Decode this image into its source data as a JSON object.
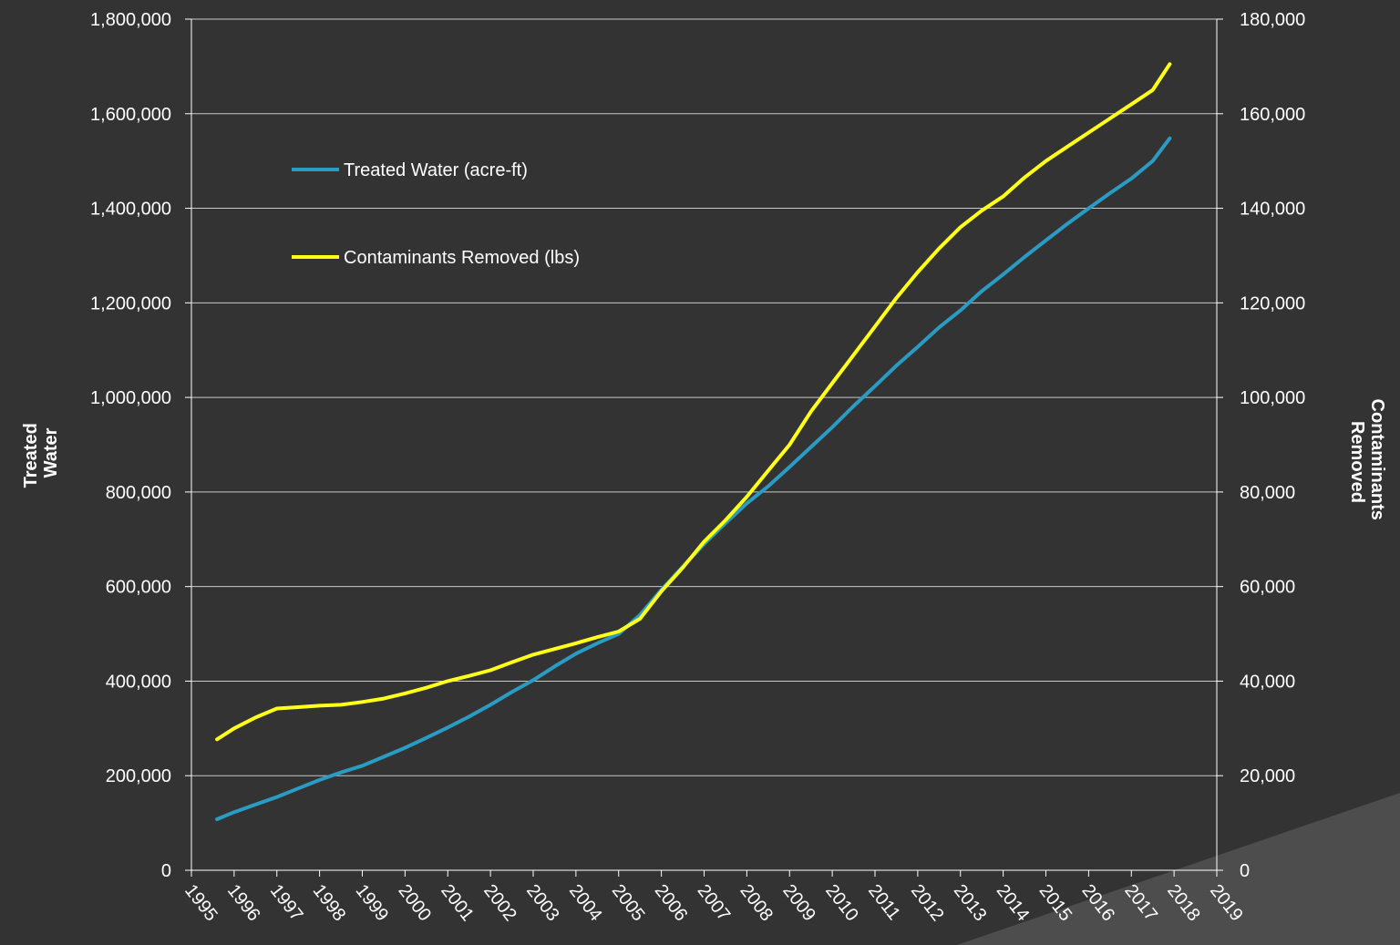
{
  "chart_data": {
    "type": "line",
    "title": "",
    "colors": {
      "background": "#333333",
      "corner": "#4d4d4d",
      "grid": "#c8c8c8",
      "axis": "#ffffff",
      "text": "#ffffff"
    },
    "x_ticks": [
      "1995",
      "1996",
      "1997",
      "1998",
      "1999",
      "2000",
      "2001",
      "2002",
      "2003",
      "2004",
      "2005",
      "2006",
      "2007",
      "2008",
      "2009",
      "2010",
      "2011",
      "2012",
      "2013",
      "2014",
      "2015",
      "2016",
      "2017",
      "2018",
      "2019"
    ],
    "xlim": [
      1995,
      2019
    ],
    "y_left": {
      "label_lines": [
        "Treated",
        "Water"
      ],
      "ylim": [
        0,
        1800000
      ],
      "ticks": [
        "0",
        "200,000",
        "400,000",
        "600,000",
        "800,000",
        "1,000,000",
        "1,200,000",
        "1,400,000",
        "1,600,000",
        "1,800,000"
      ]
    },
    "y_right": {
      "label_lines": [
        "Contaminants",
        "Removed"
      ],
      "ylim": [
        0,
        180000
      ],
      "ticks": [
        "0",
        "20,000",
        "40,000",
        "60,000",
        "80,000",
        "100,000",
        "120,000",
        "140,000",
        "160,000",
        "180,000"
      ]
    },
    "grid": true,
    "legend_position": "upper-left inside plot",
    "series": [
      {
        "name": "Treated Water (acre-ft)",
        "axis": "left",
        "color": "#2a9cc4",
        "x": [
          1995.6,
          1996,
          1996.5,
          1997,
          1997.5,
          1998,
          1998.5,
          1999,
          1999.5,
          2000,
          2000.5,
          2001,
          2001.5,
          2002,
          2002.5,
          2003,
          2003.5,
          2004,
          2004.5,
          2005,
          2005.5,
          2006,
          2006.5,
          2007,
          2007.5,
          2008,
          2008.5,
          2009,
          2009.5,
          2010,
          2010.5,
          2011,
          2011.5,
          2012,
          2012.5,
          2013,
          2013.5,
          2014,
          2014.5,
          2015,
          2015.5,
          2016,
          2016.5,
          2017,
          2017.5,
          2017.9
        ],
        "y": [
          108000,
          123000,
          139000,
          155000,
          173000,
          191000,
          207000,
          221000,
          240000,
          259000,
          280000,
          302000,
          325000,
          350000,
          377000,
          402000,
          431000,
          458000,
          480000,
          500000,
          540000,
          593000,
          642000,
          690000,
          734000,
          776000,
          812000,
          853000,
          895000,
          937000,
          982000,
          1024000,
          1067000,
          1107000,
          1148000,
          1184000,
          1225000,
          1260000,
          1297000,
          1332000,
          1367000,
          1400000,
          1432000,
          1463000,
          1500000,
          1548000
        ]
      },
      {
        "name": "Contaminants Removed (lbs)",
        "axis": "right",
        "color": "#ffff1a",
        "x": [
          1995.6,
          1996,
          1996.5,
          1997,
          1997.5,
          1998,
          1998.5,
          1999,
          1999.5,
          2000,
          2000.5,
          2001,
          2001.5,
          2002,
          2002.5,
          2003,
          2003.5,
          2004,
          2004.5,
          2005,
          2005.5,
          2006,
          2006.5,
          2007,
          2007.5,
          2008,
          2008.5,
          2009,
          2009.5,
          2010,
          2010.5,
          2011,
          2011.5,
          2012,
          2012.5,
          2013,
          2013.5,
          2014,
          2014.5,
          2015,
          2015.5,
          2016,
          2016.5,
          2017,
          2017.5,
          2017.9
        ],
        "y": [
          27700,
          30000,
          32300,
          34200,
          34500,
          34800,
          35000,
          35600,
          36300,
          37400,
          38600,
          40000,
          41100,
          42300,
          44000,
          45600,
          46800,
          48000,
          49300,
          50500,
          53200,
          59000,
          64000,
          69500,
          74000,
          79000,
          84500,
          90000,
          97000,
          103000,
          109000,
          115000,
          121000,
          126500,
          131500,
          136000,
          139500,
          142500,
          146500,
          150000,
          153000,
          156000,
          159000,
          162000,
          165000,
          170500
        ]
      }
    ]
  }
}
